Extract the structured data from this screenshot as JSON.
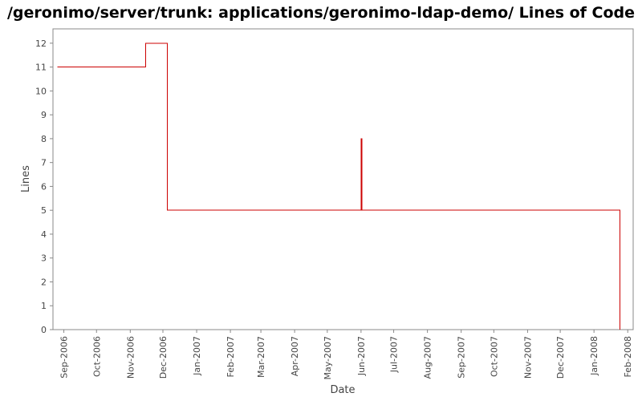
{
  "chart_data": {
    "type": "line",
    "title": "/geronimo/server/trunk: applications/geronimo-ldap-demo/ Lines of Code",
    "xlabel": "Date",
    "ylabel": "Lines",
    "ylim": [
      0,
      12.6
    ],
    "y_ticks": [
      0,
      1,
      2,
      3,
      4,
      5,
      6,
      7,
      8,
      9,
      10,
      11,
      12
    ],
    "x_ticks": [
      {
        "date": "2006-09-01",
        "label": "Sep-2006"
      },
      {
        "date": "2006-10-01",
        "label": "Oct-2006"
      },
      {
        "date": "2006-11-01",
        "label": "Nov-2006"
      },
      {
        "date": "2006-12-01",
        "label": "Dec-2006"
      },
      {
        "date": "2007-01-01",
        "label": "Jan-2007"
      },
      {
        "date": "2007-02-01",
        "label": "Feb-2007"
      },
      {
        "date": "2007-03-01",
        "label": "Mar-2007"
      },
      {
        "date": "2007-04-01",
        "label": "Apr-2007"
      },
      {
        "date": "2007-05-01",
        "label": "May-2007"
      },
      {
        "date": "2007-06-01",
        "label": "Jun-2007"
      },
      {
        "date": "2007-07-01",
        "label": "Jul-2007"
      },
      {
        "date": "2007-08-01",
        "label": "Aug-2007"
      },
      {
        "date": "2007-09-01",
        "label": "Sep-2007"
      },
      {
        "date": "2007-10-01",
        "label": "Oct-2007"
      },
      {
        "date": "2007-11-01",
        "label": "Nov-2007"
      },
      {
        "date": "2007-12-01",
        "label": "Dec-2007"
      },
      {
        "date": "2008-01-01",
        "label": "Jan-2008"
      },
      {
        "date": "2008-02-01",
        "label": "Feb-2008"
      }
    ],
    "xlim": [
      "2006-08-22",
      "2008-02-06"
    ],
    "step": true,
    "grid": false,
    "series": [
      {
        "color": "#cc0000",
        "points": [
          {
            "x": "2006-08-26",
            "y": 11
          },
          {
            "x": "2006-11-15",
            "y": 12
          },
          {
            "x": "2006-12-05",
            "y": 5
          },
          {
            "x": "2007-06-01",
            "y": 8
          },
          {
            "x": "2007-06-02",
            "y": 5
          },
          {
            "x": "2008-01-25",
            "y": 0
          }
        ]
      }
    ]
  }
}
